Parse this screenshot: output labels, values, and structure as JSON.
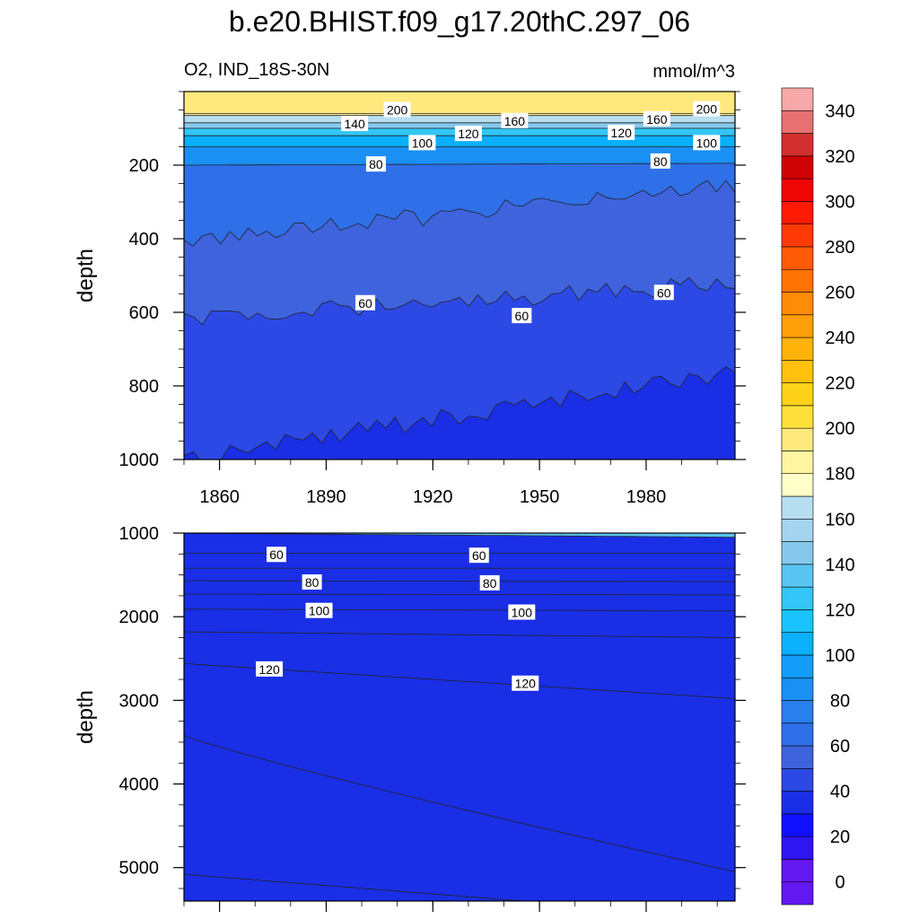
{
  "figure": {
    "title": "b.e20.BHIST.f09_g17.20thC.297_06",
    "variable_label": "O2, IND_18S-30N",
    "units": "mmol/m^3"
  },
  "chart_data": [
    {
      "type": "heatmap",
      "panel": "top",
      "xlabel": "",
      "ylabel": "depth",
      "xlim": [
        1850,
        2005
      ],
      "ylim": [
        1000,
        0
      ],
      "y_reversed": true,
      "xticks": [
        1860,
        1890,
        1920,
        1950,
        1980
      ],
      "yticks": [
        200,
        400,
        600,
        800,
        1000
      ],
      "contour_interval": 10,
      "contours": [
        {
          "level": 200,
          "depth_start": 60,
          "depth_end": 60
        },
        {
          "level": 180,
          "depth_start": 65,
          "depth_end": 65
        },
        {
          "level": 160,
          "depth_start": 85,
          "depth_end": 85
        },
        {
          "level": 140,
          "depth_start": 100,
          "depth_end": 100
        },
        {
          "level": 120,
          "depth_start": 120,
          "depth_end": 120
        },
        {
          "level": 100,
          "depth_start": 150,
          "depth_end": 150
        },
        {
          "level": 80,
          "depth_start": 200,
          "depth_end": 195
        },
        {
          "level": 70,
          "depth_start": 410,
          "depth_end": 250
        },
        {
          "level": 60,
          "depth_start": 620,
          "depth_end": 520
        },
        {
          "level": 50,
          "depth_start": 1000,
          "depth_end": 760
        }
      ],
      "contour_labels": [
        {
          "text": "200",
          "x": 1910,
          "depth": 50
        },
        {
          "text": "200",
          "x": 1997,
          "depth": 48
        },
        {
          "text": "140",
          "x": 1898,
          "depth": 88
        },
        {
          "text": "160",
          "x": 1943,
          "depth": 80
        },
        {
          "text": "160",
          "x": 1983,
          "depth": 75
        },
        {
          "text": "120",
          "x": 1930,
          "depth": 115
        },
        {
          "text": "120",
          "x": 1973,
          "depth": 112
        },
        {
          "text": "100",
          "x": 1917,
          "depth": 140
        },
        {
          "text": "100",
          "x": 1997,
          "depth": 140
        },
        {
          "text": "80",
          "x": 1904,
          "depth": 198
        },
        {
          "text": "80",
          "x": 1984,
          "depth": 190
        },
        {
          "text": "60",
          "x": 1901,
          "depth": 575
        },
        {
          "text": "60",
          "x": 1945,
          "depth": 610
        },
        {
          "text": "60",
          "x": 1985,
          "depth": 547
        }
      ]
    },
    {
      "type": "heatmap",
      "panel": "bottom",
      "xlabel": "",
      "ylabel": "depth",
      "xlim": [
        1850,
        2005
      ],
      "ylim": [
        5400,
        1000
      ],
      "y_reversed": true,
      "yticks": [
        1000,
        2000,
        3000,
        4000,
        5000
      ],
      "contour_interval": 10,
      "contours": [
        {
          "level": 50,
          "depth_start": 1000,
          "depth_end": 1050
        },
        {
          "level": 60,
          "depth_start": 1240,
          "depth_end": 1240
        },
        {
          "level": 70,
          "depth_start": 1420,
          "depth_end": 1420
        },
        {
          "level": 80,
          "depth_start": 1570,
          "depth_end": 1580
        },
        {
          "level": 90,
          "depth_start": 1730,
          "depth_end": 1740
        },
        {
          "level": 100,
          "depth_start": 1910,
          "depth_end": 1930
        },
        {
          "level": 110,
          "depth_start": 2180,
          "depth_end": 2250
        },
        {
          "level": 120,
          "depth_start": 2560,
          "depth_end": 2980
        },
        {
          "level": 130,
          "depth_start": 3420,
          "depth_end": 5050
        },
        {
          "level": 140,
          "depth_start": 5080,
          "depth_end": 5600
        }
      ],
      "contour_labels": [
        {
          "text": "60",
          "x": 1876,
          "depth": 1260
        },
        {
          "text": "60",
          "x": 1933,
          "depth": 1270
        },
        {
          "text": "80",
          "x": 1886,
          "depth": 1590
        },
        {
          "text": "80",
          "x": 1936,
          "depth": 1600
        },
        {
          "text": "100",
          "x": 1888,
          "depth": 1930
        },
        {
          "text": "100",
          "x": 1945,
          "depth": 1950
        },
        {
          "text": "120",
          "x": 1874,
          "depth": 2630
        },
        {
          "text": "120",
          "x": 1946,
          "depth": 2800
        }
      ]
    }
  ],
  "colorbar": {
    "ticks": [
      "0",
      "20",
      "40",
      "60",
      "80",
      "100",
      "120",
      "140",
      "160",
      "180",
      "200",
      "220",
      "240",
      "260",
      "280",
      "300",
      "320",
      "340"
    ],
    "levels": [
      0,
      10,
      20,
      30,
      40,
      50,
      60,
      70,
      80,
      90,
      100,
      110,
      120,
      130,
      140,
      150,
      160,
      170,
      180,
      190,
      200,
      210,
      220,
      230,
      240,
      250,
      260,
      270,
      280,
      290,
      300,
      310,
      320,
      330,
      340,
      350
    ],
    "colors": [
      "#6418f0",
      "#6418f0",
      "#2f15f0",
      "#1010ff",
      "#1a2ee6",
      "#2c49e6",
      "#3f63dd",
      "#2f6fe8",
      "#2a7fee",
      "#1a8ff4",
      "#139df8",
      "#0ab0fc",
      "#1ac3fc",
      "#33c6f6",
      "#5ac4f2",
      "#86c8ec",
      "#a4d4f0",
      "#b8def2",
      "#ffffc8",
      "#fff4a0",
      "#ffe97e",
      "#ffe03a",
      "#ffd21a",
      "#ffc10d",
      "#ffb20a",
      "#ff9f0a",
      "#ff8b07",
      "#ff7305",
      "#ff5a05",
      "#ff3a05",
      "#ff1a05",
      "#ee0505",
      "#cf0303",
      "#d23030",
      "#e87070",
      "#f7a8a8"
    ]
  }
}
